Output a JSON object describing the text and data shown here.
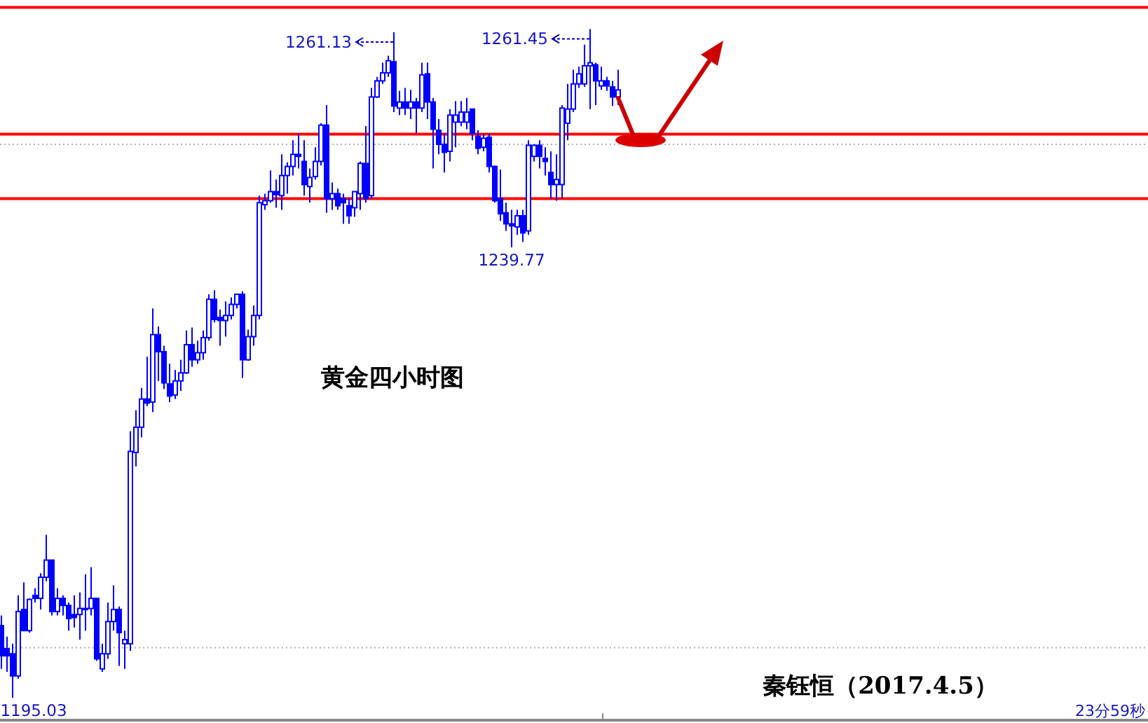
{
  "chart_data": {
    "type": "candlestick",
    "title": "黄金四小时图",
    "categories": [
      null,
      null,
      null,
      null,
      null,
      null,
      null,
      null,
      null,
      null,
      null,
      null,
      null,
      null,
      null,
      null,
      null,
      null,
      null,
      null,
      null,
      null,
      null,
      null,
      null,
      null,
      null,
      null,
      null,
      null,
      null,
      null,
      null,
      null,
      null,
      null,
      null,
      null,
      null,
      null,
      null,
      null,
      null,
      null,
      null,
      null,
      null,
      null,
      null,
      null,
      null,
      null,
      null,
      null,
      null,
      null,
      null,
      null,
      null,
      null,
      null,
      null,
      null,
      null,
      null,
      null,
      null,
      null,
      null,
      null,
      null,
      null,
      null,
      null,
      null,
      null,
      null,
      null,
      null,
      null,
      null,
      null,
      null,
      null,
      null,
      null,
      null,
      null,
      null,
      null,
      null,
      null,
      null,
      null,
      null,
      null,
      null,
      null,
      null,
      null,
      null,
      null,
      null,
      null,
      null,
      null,
      null,
      null,
      null,
      null,
      null
    ],
    "series": [
      {
        "color": "#0000ff",
        "ohlc": [
          [
            1202.2,
            1203.2,
            1197.9,
            1199.2
          ],
          [
            1199.9,
            1201.1,
            1197.6,
            1199.2
          ],
          [
            1199.4,
            1200.4,
            1195.03,
            1197.2
          ],
          [
            1197.2,
            1205.2,
            1196.9,
            1203.6
          ],
          [
            1203.8,
            1206.5,
            1201.7,
            1201.7
          ],
          [
            1201.7,
            1204.9,
            1201.5,
            1204.8
          ],
          [
            1205.2,
            1205.9,
            1204.5,
            1204.9
          ],
          [
            1204.9,
            1207.4,
            1203.8,
            1207.0
          ],
          [
            1207.0,
            1211.2,
            1206.6,
            1208.7
          ],
          [
            1208.7,
            1208.7,
            1203.2,
            1203.6
          ],
          [
            1203.6,
            1205.9,
            1203.2,
            1204.9
          ],
          [
            1204.9,
            1205.2,
            1203.2,
            1204.2
          ],
          [
            1204.2,
            1204.5,
            1201.7,
            1202.9
          ],
          [
            1203.3,
            1205.2,
            1202.0,
            1203.0
          ],
          [
            1203.3,
            1205.5,
            1200.8,
            1203.9
          ],
          [
            1203.9,
            1207.3,
            1201.7,
            1203.8
          ],
          [
            1203.9,
            1208.0,
            1203.2,
            1204.9
          ],
          [
            1204.9,
            1204.9,
            1198.7,
            1198.9
          ],
          [
            1197.9,
            1200.4,
            1197.6,
            1199.4
          ],
          [
            1199.4,
            1204.5,
            1198.9,
            1202.6
          ],
          [
            1202.6,
            1206.2,
            1201.7,
            1203.8
          ],
          [
            1203.8,
            1204.1,
            1198.2,
            1201.5
          ],
          [
            1200.4,
            1201.7,
            1197.9,
            1200.8
          ],
          [
            1200.4,
            1221.5,
            1199.7,
            1219.5
          ],
          [
            1219.4,
            1223.6,
            1218.0,
            1221.9
          ],
          [
            1221.9,
            1225.8,
            1220.9,
            1224.7
          ],
          [
            1224.7,
            1228.9,
            1224.0,
            1224.3
          ],
          [
            1224.4,
            1233.7,
            1223.4,
            1231.1
          ],
          [
            1231.1,
            1231.9,
            1226.5,
            1229.4
          ],
          [
            1229.4,
            1230.0,
            1225.7,
            1226.3
          ],
          [
            1226.2,
            1228.2,
            1224.4,
            1225.0
          ],
          [
            1225.1,
            1227.6,
            1224.7,
            1226.5
          ],
          [
            1226.5,
            1228.6,
            1225.5,
            1227.3
          ],
          [
            1227.3,
            1231.5,
            1227.2,
            1230.1
          ],
          [
            1230.1,
            1231.8,
            1227.9,
            1228.6
          ],
          [
            1228.6,
            1230.5,
            1228.2,
            1229.3
          ],
          [
            1229.3,
            1231.5,
            1228.6,
            1230.8
          ],
          [
            1230.8,
            1235.1,
            1230.5,
            1234.6
          ],
          [
            1234.6,
            1235.5,
            1232.3,
            1232.6
          ],
          [
            1232.8,
            1233.6,
            1230.0,
            1232.5
          ],
          [
            1232.5,
            1234.4,
            1230.9,
            1233.0
          ],
          [
            1233.0,
            1234.8,
            1232.6,
            1234.1
          ],
          [
            1234.1,
            1235.1,
            1233.7,
            1235.1
          ],
          [
            1235.1,
            1235.4,
            1226.8,
            1228.6
          ],
          [
            1228.6,
            1231.6,
            1228.5,
            1230.9
          ],
          [
            1230.9,
            1234.0,
            1230.0,
            1233.0
          ],
          [
            1233.0,
            1244.9,
            1232.6,
            1244.2
          ],
          [
            1244.0,
            1245.1,
            1243.5,
            1244.4
          ],
          [
            1244.4,
            1247.4,
            1244.2,
            1245.3
          ],
          [
            1245.3,
            1246.5,
            1243.7,
            1245.0
          ],
          [
            1244.9,
            1249.0,
            1243.5,
            1246.9
          ],
          [
            1246.9,
            1248.2,
            1245.1,
            1247.8
          ],
          [
            1247.8,
            1250.4,
            1246.9,
            1249.0
          ],
          [
            1249.0,
            1251.1,
            1247.6,
            1248.8
          ],
          [
            1248.3,
            1250.4,
            1244.9,
            1246.0
          ],
          [
            1245.8,
            1247.6,
            1244.2,
            1246.7
          ],
          [
            1246.8,
            1249.7,
            1246.5,
            1248.3
          ],
          [
            1248.3,
            1252.1,
            1247.9,
            1251.9
          ],
          [
            1251.9,
            1253.9,
            1243.2,
            1244.6
          ],
          [
            1244.6,
            1246.2,
            1243.5,
            1245.1
          ],
          [
            1245.1,
            1245.6,
            1243.5,
            1243.9
          ],
          [
            1244.6,
            1245.1,
            1242.1,
            1244.2
          ],
          [
            1243.9,
            1244.6,
            1242.1,
            1242.9
          ],
          [
            1243.7,
            1245.3,
            1242.8,
            1245.3
          ],
          [
            1245.1,
            1248.3,
            1243.5,
            1248.1
          ],
          [
            1248.1,
            1251.8,
            1244.2,
            1244.6
          ],
          [
            1244.9,
            1255.6,
            1244.6,
            1254.7
          ],
          [
            1254.7,
            1256.7,
            1254.6,
            1256.3
          ],
          [
            1256.3,
            1258.1,
            1256.0,
            1257.1
          ],
          [
            1257.1,
            1258.8,
            1256.7,
            1258.3
          ],
          [
            1258.2,
            1261.13,
            1253.2,
            1253.8
          ],
          [
            1253.6,
            1255.3,
            1252.9,
            1254.2
          ],
          [
            1254.2,
            1255.6,
            1252.9,
            1253.6
          ],
          [
            1253.6,
            1255.4,
            1252.5,
            1254.2
          ],
          [
            1254.2,
            1254.6,
            1251.1,
            1253.6
          ],
          [
            1253.6,
            1258.1,
            1253.2,
            1256.9
          ],
          [
            1257.0,
            1258.1,
            1252.5,
            1254.2
          ],
          [
            1254.2,
            1254.6,
            1247.6,
            1251.5
          ],
          [
            1251.4,
            1252.5,
            1249.0,
            1250.0
          ],
          [
            1250.0,
            1251.1,
            1247.2,
            1249.2
          ],
          [
            1249.3,
            1253.5,
            1248.3,
            1252.9
          ],
          [
            1252.2,
            1254.3,
            1249.7,
            1252.9
          ],
          [
            1252.2,
            1254.3,
            1251.8,
            1253.2
          ],
          [
            1252.2,
            1254.6,
            1251.5,
            1253.2
          ],
          [
            1253.5,
            1253.5,
            1250.4,
            1251.1
          ],
          [
            1250.8,
            1251.4,
            1249.0,
            1249.6
          ],
          [
            1249.7,
            1251.1,
            1249.3,
            1250.6
          ],
          [
            1250.7,
            1251.1,
            1247.2,
            1247.8
          ],
          [
            1247.8,
            1247.9,
            1244.2,
            1244.4
          ],
          [
            1244.6,
            1247.5,
            1242.4,
            1243.1
          ],
          [
            1243.2,
            1244.2,
            1241.4,
            1242.1
          ],
          [
            1242.1,
            1243.5,
            1239.77,
            1241.9
          ],
          [
            1241.8,
            1243.5,
            1241.0,
            1242.9
          ],
          [
            1242.9,
            1243.5,
            1240.3,
            1241.2
          ],
          [
            1241.4,
            1250.4,
            1241.0,
            1249.9
          ],
          [
            1248.8,
            1250.0,
            1248.3,
            1249.9
          ],
          [
            1249.9,
            1250.4,
            1247.6,
            1248.8
          ],
          [
            1248.6,
            1249.7,
            1246.9,
            1248.3
          ],
          [
            1247.2,
            1249.3,
            1244.6,
            1246.0
          ],
          [
            1246.0,
            1249.0,
            1244.4,
            1246.5
          ],
          [
            1246.0,
            1253.9,
            1244.6,
            1253.6
          ],
          [
            1252.1,
            1256.0,
            1250.4,
            1253.5
          ],
          [
            1253.5,
            1257.4,
            1253.2,
            1256.0
          ],
          [
            1256.0,
            1257.7,
            1255.6,
            1257.0
          ],
          [
            1256.0,
            1259.9,
            1255.7,
            1257.8
          ],
          [
            1257.8,
            1261.45,
            1253.5,
            1258.1
          ],
          [
            1257.9,
            1258.1,
            1253.9,
            1256.3
          ],
          [
            1255.8,
            1257.7,
            1255.4,
            1256.3
          ],
          [
            1256.3,
            1256.7,
            1255.3,
            1255.8
          ],
          [
            1255.7,
            1256.3,
            1253.8,
            1254.7
          ],
          [
            1254.7,
            1257.4,
            1253.9,
            1255.4
          ]
        ]
      }
    ],
    "yticks": [
      {
        "value": 1200,
        "label": null
      },
      {
        "value": 1250,
        "label": null
      }
    ],
    "grid": "y",
    "ref_lines": [
      {
        "axis": "y",
        "value": 1263.6,
        "color": "#ff0000"
      },
      {
        "axis": "y",
        "value": 1251.0,
        "color": "#ff0000"
      },
      {
        "axis": "y",
        "value": 1244.6,
        "color": "#ff0000"
      }
    ],
    "annotations": [
      "1261.13",
      "1261.45",
      "1239.77",
      "1195.03",
      "秦钰恒（2017.4.5）",
      "23分59秒"
    ]
  }
}
